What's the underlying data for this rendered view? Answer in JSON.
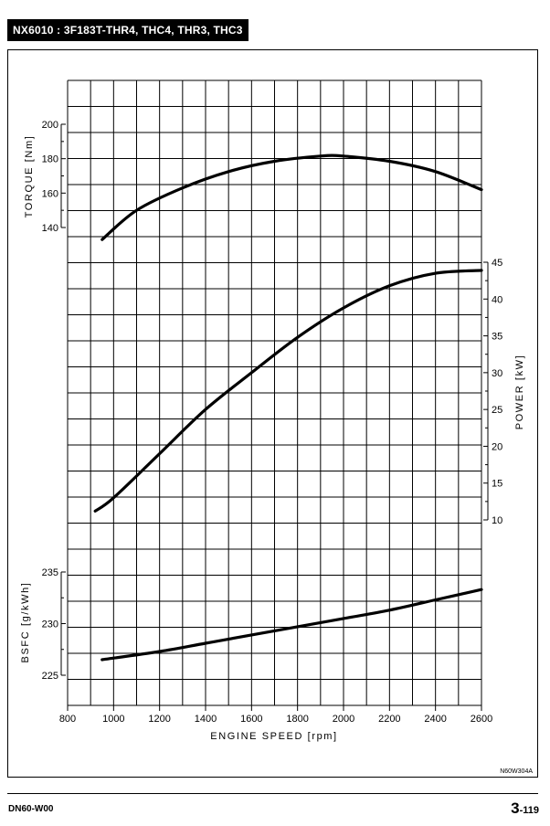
{
  "header": {
    "model_title": "NX6010 : 3F183T-THR4, THC4, THR3, THC3"
  },
  "footer": {
    "doc_code": "DN60-W00",
    "page_major": "3",
    "page_minor": "-119"
  },
  "drawing_code": "N60W304A",
  "chart_data": [
    {
      "type": "line",
      "name": "torque",
      "ylabel": "TORQUE [Nm]",
      "xlabel": "",
      "xlim": [
        800,
        2600
      ],
      "ylim": [
        140,
        200
      ],
      "yticks": [
        140,
        160,
        180,
        200
      ],
      "x": [
        950,
        1100,
        1300,
        1500,
        1700,
        1900,
        2000,
        2200,
        2400,
        2600
      ],
      "y": [
        133,
        150,
        163,
        172.5,
        178.5,
        181.5,
        181.5,
        178.5,
        172.5,
        162
      ]
    },
    {
      "type": "line",
      "name": "power",
      "ylabel": "POWER [kW]",
      "xlabel": "",
      "xlim": [
        800,
        2600
      ],
      "ylim": [
        10,
        45
      ],
      "yticks": [
        10,
        15,
        20,
        25,
        30,
        35,
        40,
        45
      ],
      "x": [
        920,
        1000,
        1200,
        1400,
        1600,
        1800,
        2000,
        2200,
        2400,
        2600
      ],
      "y": [
        11.2,
        13,
        19,
        25,
        30,
        34.8,
        38.8,
        41.8,
        43.5,
        43.9
      ]
    },
    {
      "type": "line",
      "name": "bsfc",
      "ylabel": "BSFC [g/kWh]",
      "xlabel": "ENGINE SPEED [rpm]",
      "xlim": [
        800,
        2600
      ],
      "ylim": [
        225,
        235
      ],
      "yticks": [
        225,
        230,
        235
      ],
      "xticks": [
        800,
        1000,
        1200,
        1400,
        1600,
        1800,
        2000,
        2200,
        2400,
        2600
      ],
      "x": [
        950,
        1200,
        1400,
        1600,
        1800,
        2000,
        2200,
        2400,
        2600
      ],
      "y": [
        226.5,
        227.3,
        228.1,
        228.9,
        229.7,
        230.5,
        231.3,
        232.3,
        233.3
      ]
    }
  ]
}
